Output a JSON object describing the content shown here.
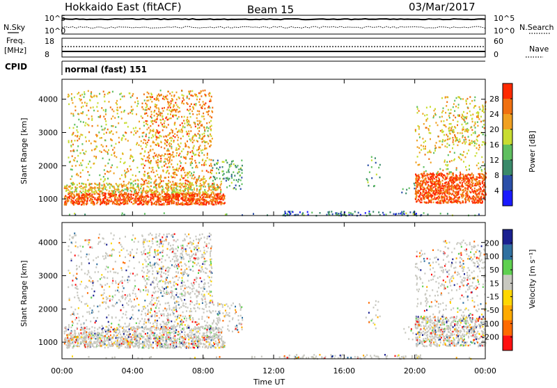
{
  "header": {
    "site": "Hokkaido East (fitACF)",
    "beam": "Beam 15",
    "date": "03/Mar/2017"
  },
  "top_panels": {
    "nsky_label": "N.Sky",
    "nsky_ticks": [
      "10^5",
      "10^0"
    ],
    "nsearch_label": "N.Search",
    "nsearch_ticks": [
      "10^5",
      "10^0"
    ],
    "freq_label_1": "Freq.",
    "freq_label_2": "[MHz]",
    "freq_ticks": [
      "18",
      "8"
    ],
    "nave_label": "Nave",
    "nave_ticks": [
      "60",
      "0"
    ],
    "cpid_label": "CPID",
    "cpid_value": "normal (fast) 151"
  },
  "colors": {
    "power": [
      "#1a1aff",
      "#2b4fa8",
      "#3a8a6a",
      "#5fbf5f",
      "#c8dc30",
      "#f0a020",
      "#f07010",
      "#ff2a00"
    ],
    "velocity": [
      "#ff1010",
      "#ff6a00",
      "#ffaa00",
      "#ffd700",
      "#c8c8c0",
      "#5fd050",
      "#3070a0",
      "#1a2090"
    ]
  },
  "chart_data": [
    {
      "type": "heatmap",
      "panel": "power",
      "ylabel": "Slant Range [km]",
      "yticks": [
        "1000",
        "2000",
        "3000",
        "4000"
      ],
      "ylim": [
        500,
        4600
      ],
      "xlim_hours": [
        0,
        24
      ],
      "colorbar_label": "Power [dB]",
      "colorbar_ticks": [
        "4",
        "8",
        "12",
        "16",
        "20",
        "24",
        "28"
      ],
      "colorbar_range": [
        0,
        32
      ]
    },
    {
      "type": "heatmap",
      "panel": "velocity",
      "ylabel": "Slant Range [km]",
      "yticks": [
        "1000",
        "2000",
        "3000",
        "4000"
      ],
      "ylim": [
        500,
        4600
      ],
      "xlim_hours": [
        0,
        24
      ],
      "colorbar_label": "Velocity [m s⁻¹]",
      "colorbar_ticks": [
        "-200",
        "-100",
        "-50",
        "-15",
        "15",
        "50",
        "100",
        "200"
      ],
      "colorbar_range": [
        -250,
        250
      ]
    }
  ],
  "xaxis": {
    "ticks": [
      "00:00",
      "04:00",
      "08:00",
      "12:00",
      "16:00",
      "20:00",
      "00:00"
    ],
    "label": "Time UT"
  }
}
